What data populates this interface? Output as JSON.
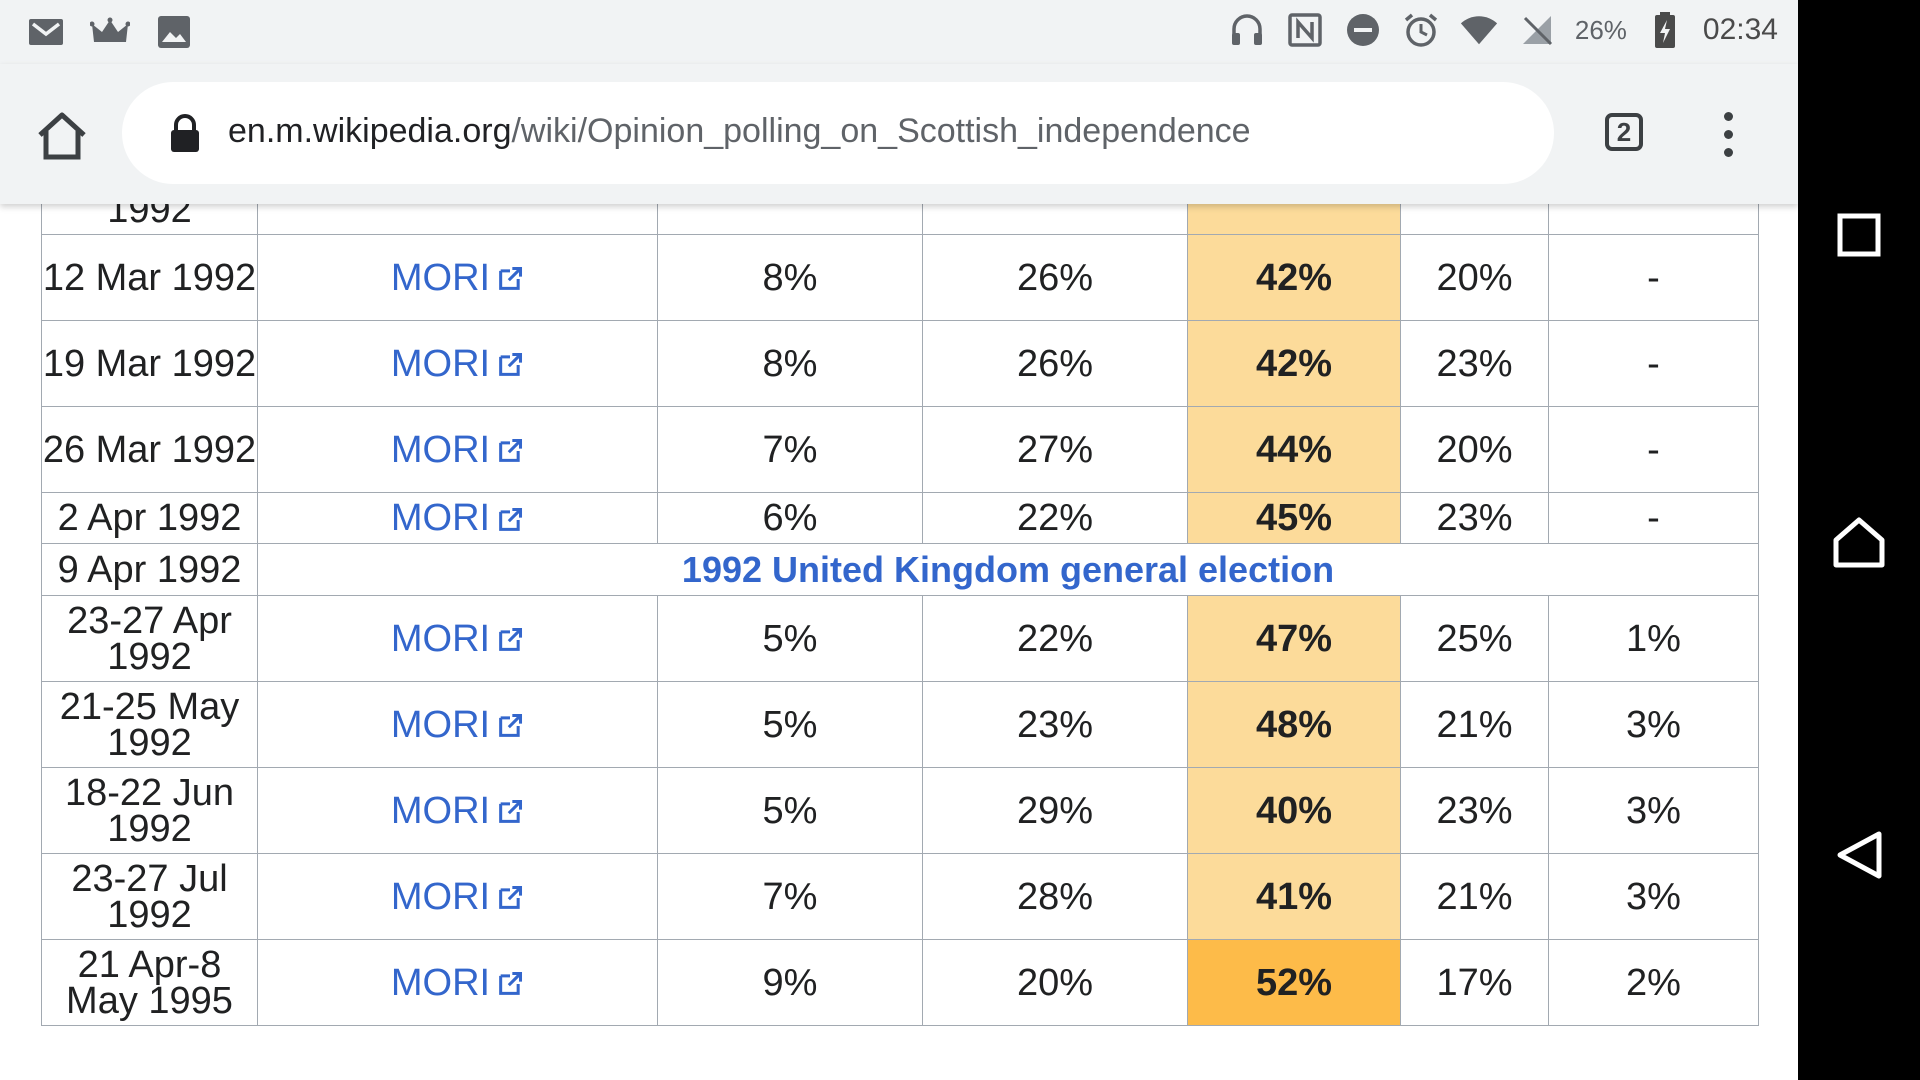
{
  "status_bar": {
    "battery": "26%",
    "time": "02:34"
  },
  "browser": {
    "url_domain": "en.m.wikipedia.org",
    "url_path": "/wiki/Opinion_polling_on_Scottish_independence",
    "tab_count": "2"
  },
  "table": {
    "top_partial_row": {
      "date": "1992"
    },
    "rows": [
      {
        "date": "12 Mar 1992",
        "pollster": "MORI",
        "c1": "8%",
        "c2": "26%",
        "c3": "42%",
        "c4": "20%",
        "c5": "-"
      },
      {
        "date": "19 Mar 1992",
        "pollster": "MORI",
        "c1": "8%",
        "c2": "26%",
        "c3": "42%",
        "c4": "23%",
        "c5": "-"
      },
      {
        "date": "26 Mar 1992",
        "pollster": "MORI",
        "c1": "7%",
        "c2": "27%",
        "c3": "44%",
        "c4": "20%",
        "c5": "-"
      },
      {
        "date": "2 Apr 1992",
        "pollster": "MORI",
        "c1": "6%",
        "c2": "22%",
        "c3": "45%",
        "c4": "23%",
        "c5": "-"
      }
    ],
    "election_row": {
      "date": "9 Apr 1992",
      "label": "1992 United Kingdom general election"
    },
    "rows_after": [
      {
        "date": "23-27 Apr 1992",
        "pollster": "MORI",
        "c1": "5%",
        "c2": "22%",
        "c3": "47%",
        "c4": "25%",
        "c5": "1%"
      },
      {
        "date": "21-25 May 1992",
        "pollster": "MORI",
        "c1": "5%",
        "c2": "23%",
        "c3": "48%",
        "c4": "21%",
        "c5": "3%"
      },
      {
        "date": "18-22 Jun 1992",
        "pollster": "MORI",
        "c1": "5%",
        "c2": "29%",
        "c3": "40%",
        "c4": "23%",
        "c5": "3%"
      },
      {
        "date": "23-27 Jul 1992",
        "pollster": "MORI",
        "c1": "7%",
        "c2": "28%",
        "c3": "41%",
        "c4": "21%",
        "c5": "3%"
      },
      {
        "date": "21 Apr-8 May 1995",
        "pollster": "MORI",
        "c1": "9%",
        "c2": "20%",
        "c3": "52%",
        "c4": "17%",
        "c5": "2%"
      }
    ]
  },
  "colors": {
    "lead_highlight": "#fcdb9a",
    "lead_highlight_strong": "#fdbb49",
    "link": "#3366cc"
  }
}
